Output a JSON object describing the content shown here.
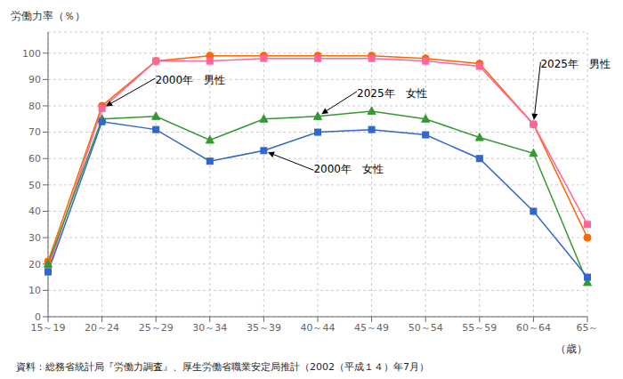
{
  "chart_data": {
    "type": "line",
    "y_label": "労働力率（％）",
    "x_label": "（歳）",
    "source": "資料：総務省統計局『労働力調査』、厚生労働省職業安定局推計（2002（平成１４）年7月）",
    "categories": [
      "15～19",
      "20～24",
      "25～29",
      "30～34",
      "35～39",
      "40～44",
      "45～49",
      "50～54",
      "55～59",
      "60～64",
      "65～"
    ],
    "series": [
      {
        "name": "2025年　男性",
        "color": "#ff6600",
        "marker": "circle",
        "values": [
          21,
          80,
          97,
          99,
          99,
          99,
          99,
          98,
          96,
          73,
          30
        ]
      },
      {
        "name": "2000年　男性",
        "color": "#ff6699",
        "marker": "square",
        "values": [
          18,
          79,
          97,
          97,
          98,
          98,
          98,
          97,
          95,
          73,
          35
        ]
      },
      {
        "name": "2025年　女性",
        "color": "#339933",
        "marker": "triangle",
        "values": [
          20,
          75,
          76,
          67,
          75,
          76,
          78,
          75,
          68,
          62,
          13
        ]
      },
      {
        "name": "2000年　女性",
        "color": "#3366cc",
        "marker": "square",
        "values": [
          17,
          74,
          71,
          59,
          63,
          70,
          71,
          69,
          60,
          40,
          15
        ]
      }
    ],
    "annotations": [
      {
        "text": "2000年　男性",
        "x": "20～24",
        "y": 79
      },
      {
        "text": "2025年　男性",
        "x": "60～64",
        "y": 73
      },
      {
        "text": "2000年　女性",
        "x": "35～39",
        "y": 63
      },
      {
        "text": "2025年　女性",
        "x": "40～44",
        "y": 76
      }
    ],
    "ylim": [
      0,
      108
    ],
    "yticks": [
      0,
      10,
      20,
      30,
      40,
      50,
      60,
      70,
      80,
      90,
      100
    ],
    "grid": true
  }
}
